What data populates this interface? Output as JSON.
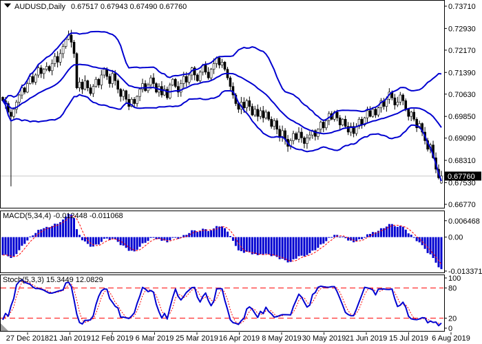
{
  "main": {
    "symbol": "AUDUSD,Daily",
    "ohlc": "0.67517 0.67943 0.67490 0.67760"
  },
  "macd": {
    "label": "MACD(5,34,4) -0.012448 -0.011068"
  },
  "stoch": {
    "label": "Stoch(5,3,3) 15.3449 12.0829"
  },
  "colors": {
    "series_blue": "#0000d0",
    "signal_red": "#ff0000",
    "price_line_gray": "#c8c8c8",
    "badge_bg": "#000000",
    "badge_fg": "#ffffff",
    "bull_fill": "#ffffff",
    "bear_fill": "#000000",
    "border": "#000000",
    "background": "#ffffff",
    "scroll_marker_gray": "#a0a0a0"
  },
  "chart_data": [
    {
      "type": "candlestick",
      "title": "AUDUSD,Daily",
      "timeframe": "Daily",
      "x_tick_labels": [
        "27 Dec 2018",
        "21 Jan 2019",
        "12 Feb 2019",
        "6 Mar 2019",
        "25 Mar 2019",
        "16 Apr 2019",
        "8 May 2019",
        "30 May 2019",
        "21 Jun 2019",
        "15 Jul 2019",
        "6 Aug 2019"
      ],
      "y_ticks": [
        0.7371,
        0.7293,
        0.7217,
        0.7139,
        0.7063,
        0.6985,
        0.6909,
        0.6831,
        0.6753,
        0.6677
      ],
      "y_tick_labels": [
        "0.73710",
        "0.72930",
        "0.72170",
        "0.71390",
        "0.70630",
        "0.69850",
        "0.69090",
        "0.68310",
        "0.67530",
        "0.66770"
      ],
      "ylim": [
        0.6677,
        0.7371
      ],
      "current_price": 0.6776,
      "current_price_label": "0.67760",
      "overlay": {
        "name": "Bollinger Bands",
        "period": 20,
        "deviation": 2
      },
      "first_open": 0.7052,
      "special_low": {
        "index": 3,
        "value": 0.674
      },
      "last_bar": {
        "open": 0.67517,
        "high": 0.67943,
        "low": 0.6749,
        "close": 0.6776
      },
      "closes": [
        0.704,
        0.703,
        0.7,
        0.6985,
        0.701,
        0.7035,
        0.706,
        0.7085,
        0.707,
        0.71,
        0.7125,
        0.7105,
        0.713,
        0.7155,
        0.7135,
        0.715,
        0.716,
        0.7145,
        0.717,
        0.7195,
        0.7175,
        0.7205,
        0.723,
        0.7255,
        0.727,
        0.7245,
        0.7205,
        0.7085,
        0.7105,
        0.708,
        0.711,
        0.7085,
        0.7065,
        0.709,
        0.7115,
        0.7095,
        0.713,
        0.715,
        0.7125,
        0.71,
        0.7135,
        0.711,
        0.708,
        0.7055,
        0.7075,
        0.7045,
        0.702,
        0.7045,
        0.703,
        0.7055,
        0.708,
        0.71,
        0.7075,
        0.7095,
        0.712,
        0.71,
        0.707,
        0.709,
        0.706,
        0.708,
        0.705,
        0.7095,
        0.7115,
        0.709,
        0.707,
        0.71,
        0.7125,
        0.7105,
        0.713,
        0.7155,
        0.713,
        0.711,
        0.714,
        0.7165,
        0.714,
        0.712,
        0.715,
        0.717,
        0.719,
        0.7165,
        0.7175,
        0.715,
        0.712,
        0.709,
        0.706,
        0.703,
        0.701,
        0.7035,
        0.7015,
        0.704,
        0.702,
        0.699,
        0.701,
        0.6985,
        0.7005,
        0.698,
        0.7,
        0.6975,
        0.695,
        0.697,
        0.694,
        0.6915,
        0.6935,
        0.6905,
        0.688,
        0.69,
        0.6925,
        0.6905,
        0.693,
        0.691,
        0.689,
        0.691,
        0.692,
        0.6935,
        0.6915,
        0.694,
        0.6965,
        0.6945,
        0.697,
        0.6995,
        0.6975,
        0.7,
        0.698,
        0.6955,
        0.6975,
        0.695,
        0.693,
        0.695,
        0.6925,
        0.695,
        0.6975,
        0.6955,
        0.698,
        0.7005,
        0.6985,
        0.701,
        0.699,
        0.7015,
        0.704,
        0.702,
        0.7045,
        0.707,
        0.705,
        0.7025,
        0.7035,
        0.706,
        0.704,
        0.701,
        0.6985,
        0.7,
        0.6975,
        0.6945,
        0.696,
        0.693,
        0.69,
        0.687,
        0.6885,
        0.684,
        0.68,
        0.677,
        0.6776
      ]
    },
    {
      "type": "bar",
      "name": "MACD",
      "params": "5,34,4",
      "derived_from": "closes",
      "y_ticks": [
        0.006468,
        0,
        -0.013371
      ],
      "y_tick_labels": [
        "0.006468",
        "0.00",
        "-0.013371"
      ],
      "current_values": [
        -0.012448,
        -0.011068
      ]
    },
    {
      "type": "line",
      "name": "Stochastic",
      "params": "5,3,3",
      "derived_from": "closes",
      "levels": [
        80,
        20
      ],
      "ylim": [
        0,
        100
      ],
      "y_ticks": [
        100,
        80,
        20,
        0
      ],
      "y_tick_labels": [
        "100",
        "80",
        "20",
        "0"
      ],
      "current_values": [
        15.3449,
        12.0829
      ]
    }
  ]
}
